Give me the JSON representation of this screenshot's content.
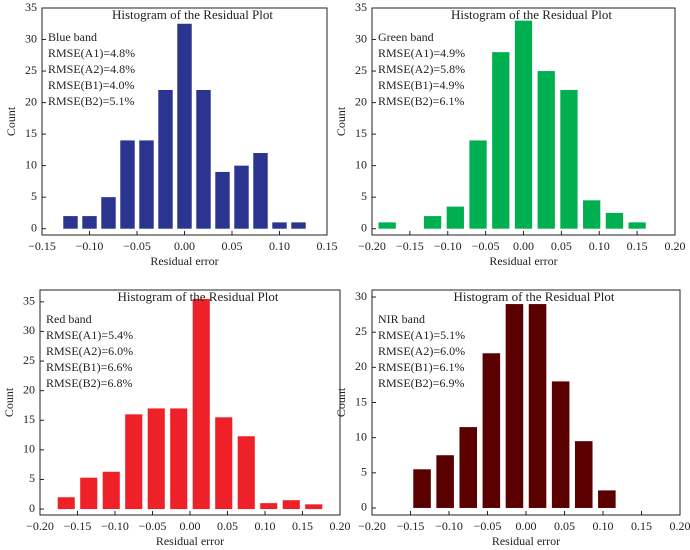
{
  "chart_data": [
    {
      "type": "histogram",
      "title": "Histogram of the Residual Plot",
      "xlabel": "Residual error",
      "ylabel": "Count",
      "annotations": [
        "Blue band",
        "RMSE(A1)=4.8%",
        "RMSE(A2)=4.8%",
        "RMSE(B1)=4.0%",
        "RMSE(B2)=5.1%"
      ],
      "color": "#2b3590",
      "bins": [
        -0.13,
        -0.11,
        -0.09,
        -0.07,
        -0.05,
        -0.03,
        -0.01,
        0.01,
        0.03,
        0.05,
        0.07,
        0.09,
        0.11,
        0.13
      ],
      "values": [
        2,
        2,
        5,
        14,
        14,
        22,
        32.5,
        22,
        9,
        10,
        12,
        1,
        1
      ],
      "xlim": [
        -0.15,
        0.15
      ],
      "xticks": [
        {
          "value": -0.15,
          "label": "−0.15"
        },
        {
          "value": -0.1,
          "label": "−0.10"
        },
        {
          "value": -0.05,
          "label": "−0.05"
        },
        {
          "value": 0,
          "label": "0.00"
        },
        {
          "value": 0.05,
          "label": "0.05"
        },
        {
          "value": 0.1,
          "label": "0.10"
        },
        {
          "value": 0.15,
          "label": "0.15"
        }
      ],
      "ylim": [
        -1,
        35
      ],
      "yticks": [
        0,
        5,
        10,
        15,
        20,
        25,
        30,
        35
      ]
    },
    {
      "type": "histogram",
      "title": "Histogram of the Residual Plot",
      "xlabel": "Residual error",
      "ylabel": "Count",
      "annotations": [
        "Green band",
        "RMSE(A1)=4.9%",
        "RMSE(A2)=5.8%",
        "RMSE(B1)=4.9%",
        "RMSE(B2)=6.1%"
      ],
      "color": "#00b050",
      "bins": [
        -0.195,
        -0.165,
        -0.135,
        -0.105,
        -0.075,
        -0.045,
        -0.015,
        0.015,
        0.045,
        0.075,
        0.105,
        0.135,
        0.165
      ],
      "values": [
        1,
        0,
        2,
        3.5,
        14,
        28,
        33,
        25,
        22,
        4.5,
        2.5,
        1
      ],
      "xlim": [
        -0.2,
        0.2
      ],
      "xticks": [
        {
          "value": -0.2,
          "label": "−0.20"
        },
        {
          "value": -0.15,
          "label": "−0.15"
        },
        {
          "value": -0.1,
          "label": "−0.10"
        },
        {
          "value": -0.05,
          "label": "−0.05"
        },
        {
          "value": 0,
          "label": "0.00"
        },
        {
          "value": 0.05,
          "label": "0.05"
        },
        {
          "value": 0.1,
          "label": "0.10"
        },
        {
          "value": 0.15,
          "label": "0.15"
        },
        {
          "value": 0.2,
          "label": "0.20"
        }
      ],
      "ylim": [
        -1,
        35
      ],
      "yticks": [
        0,
        5,
        10,
        15,
        20,
        25,
        30,
        35
      ]
    },
    {
      "type": "histogram",
      "title": "Histogram of the Residual Plot",
      "xlabel": "Residual error",
      "ylabel": "Count",
      "annotations": [
        "Red band",
        "RMSE(A1)=5.4%",
        "RMSE(A2)=6.0%",
        "RMSE(B1)=6.6%",
        "RMSE(B2)=6.8%"
      ],
      "color": "#ee2028",
      "bins": [
        -0.18,
        -0.15,
        -0.12,
        -0.09,
        -0.06,
        -0.03,
        0,
        0.03,
        0.06,
        0.09,
        0.12,
        0.15,
        0.18
      ],
      "values": [
        2,
        5.3,
        6.3,
        16,
        17,
        17,
        35.5,
        15.5,
        12.3,
        1,
        1.5,
        0.8
      ],
      "xlim": [
        -0.2,
        0.2
      ],
      "xticks": [
        {
          "value": -0.2,
          "label": "−0.20"
        },
        {
          "value": -0.15,
          "label": "−0.15"
        },
        {
          "value": -0.1,
          "label": "−0.10"
        },
        {
          "value": -0.05,
          "label": "−0.05"
        },
        {
          "value": 0,
          "label": "0.00"
        },
        {
          "value": 0.05,
          "label": "0.05"
        },
        {
          "value": 0.1,
          "label": "0.10"
        },
        {
          "value": 0.15,
          "label": "0.15"
        },
        {
          "value": 0.2,
          "label": "0.20"
        }
      ],
      "ylim": [
        -1,
        37
      ],
      "yticks": [
        0,
        5,
        10,
        15,
        20,
        25,
        30,
        35
      ]
    },
    {
      "type": "histogram",
      "title": "Histogram of the Residual Plot",
      "xlabel": "Residual error",
      "ylabel": "Count",
      "annotations": [
        "NIR band",
        "RMSE(A1)=5.1%",
        "RMSE(A2)=6.0%",
        "RMSE(B1)=6.1%",
        "RMSE(B2)=6.9%"
      ],
      "color": "#5a0000",
      "bins": [
        -0.15,
        -0.12,
        -0.09,
        -0.06,
        -0.03,
        0,
        0.03,
        0.06,
        0.09,
        0.12
      ],
      "values": [
        5.5,
        7.5,
        11.5,
        22,
        29,
        29,
        18,
        9.5,
        2.5
      ],
      "xlim": [
        -0.2,
        0.2
      ],
      "xticks": [
        {
          "value": -0.2,
          "label": "−0.20"
        },
        {
          "value": -0.15,
          "label": "−0.15"
        },
        {
          "value": -0.1,
          "label": "−0.10"
        },
        {
          "value": -0.05,
          "label": "−0.05"
        },
        {
          "value": 0,
          "label": "0.00"
        },
        {
          "value": 0.05,
          "label": "0.05"
        },
        {
          "value": 0.1,
          "label": "0.10"
        },
        {
          "value": 0.15,
          "label": "0.15"
        },
        {
          "value": 0.2,
          "label": "0.20"
        }
      ],
      "ylim": [
        -1,
        31
      ],
      "yticks": [
        0,
        5,
        10,
        15,
        20,
        25,
        30
      ]
    }
  ]
}
